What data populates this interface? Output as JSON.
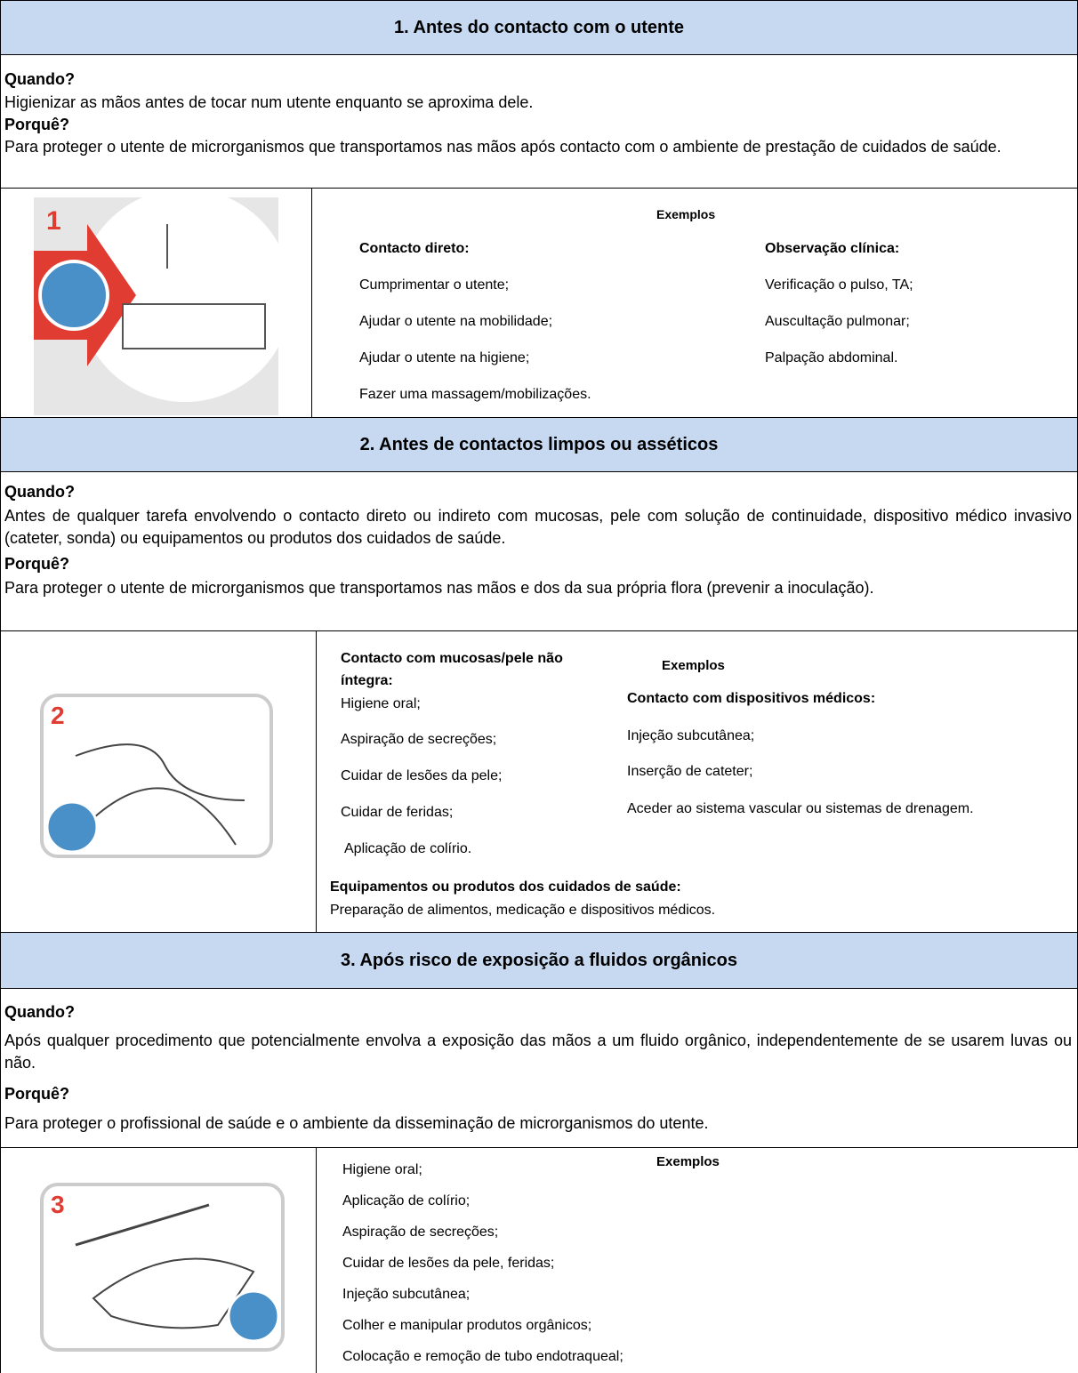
{
  "sections": [
    {
      "title": "1. Antes do contacto com o utente",
      "when_label": "Quando?",
      "when_text": "Higienizar as mãos antes de tocar num utente enquanto se aproxima dele.",
      "why_label": "Porquê?",
      "why_text": "Para proteger o utente de microrganismos que transportamos nas mãos após contacto com o ambiente de prestação de cuidados de saúde.",
      "examples": {
        "title": "Exemplos",
        "columns": [
          {
            "heading": "Contacto direto:",
            "items": [
              "Cumprimentar o utente;",
              "Ajudar o utente na mobilidade;",
              "Ajudar o utente na higiene;",
              "Fazer uma massagem/mobilizações."
            ]
          },
          {
            "heading": "Observação clínica:",
            "items": [
              "Verificação o pulso, TA;",
              "Auscultação pulmonar;",
              "Palpação abdominal."
            ]
          }
        ]
      }
    },
    {
      "title": "2. Antes de contactos limpos ou asséticos",
      "when_label": "Quando?",
      "when_text": "Antes de qualquer tarefa envolvendo o contacto direto ou indireto com mucosas, pele com solução de continuidade, dispositivo médico invasivo (cateter, sonda) ou equipamentos ou produtos dos cuidados de saúde.",
      "why_label": "Porquê?",
      "why_text": "Para proteger o utente de microrganismos que transportamos nas mãos e dos da sua própria flora (prevenir a inoculação).",
      "examples": {
        "title": "Exemplos",
        "columns": [
          {
            "heading": "Contacto com mucosas/pele não íntegra:",
            "items": [
              "Higiene oral;",
              "Aspiração de secreções;",
              "Cuidar de lesões da pele;",
              "Cuidar de feridas;",
              "Aplicação de colírio."
            ]
          },
          {
            "heading": "Contacto com dispositivos médicos:",
            "items": [
              "Injeção subcutânea;",
              "Inserção de cateter;",
              "Aceder ao sistema vascular ou sistemas de drenagem."
            ]
          },
          {
            "heading": "Equipamentos ou produtos dos cuidados de saúde:",
            "items": [
              "Preparação de alimentos, medicação e dispositivos médicos."
            ]
          }
        ]
      }
    },
    {
      "title": "3. Após risco de exposição a fluidos orgânicos",
      "when_label": "Quando?",
      "when_text": "Após qualquer procedimento que potencialmente envolva a exposição das mãos a um fluido orgânico, independentemente de se usarem luvas ou não.",
      "why_label": "Porquê?",
      "why_text": "Para proteger o profissional de saúde e o ambiente da disseminação de microrganismos do utente.",
      "examples": {
        "title": "Exemplos",
        "columns": [
          {
            "items": [
              "Higiene oral;",
              "Aplicação de colírio;",
              "Aspiração de secreções;",
              "Cuidar de lesões da pele, feridas;",
              "Injeção subcutânea;",
              "Colher e manipular produtos orgânicos;",
              "Colocação e remoção de tubo endotraqueal;"
            ]
          }
        ]
      }
    }
  ]
}
